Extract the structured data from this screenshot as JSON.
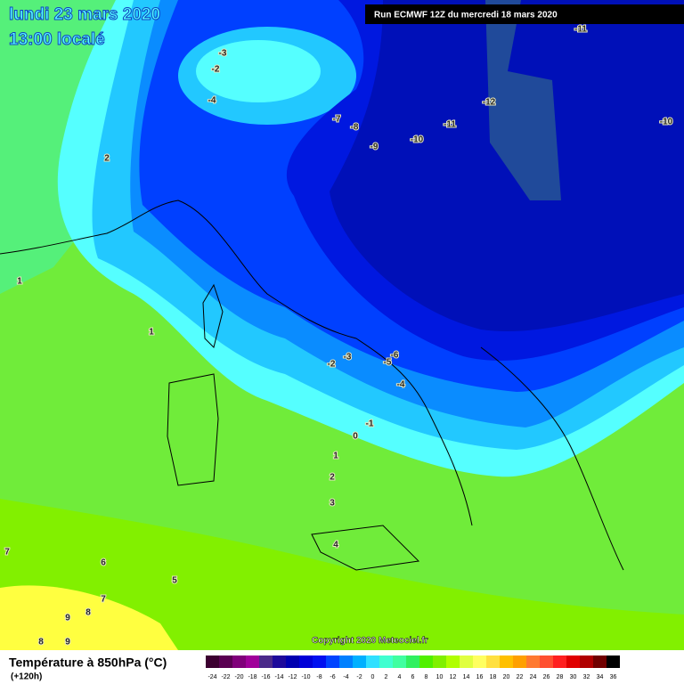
{
  "header": {
    "date": "lundi 23 mars 2020",
    "time": "13:00 localé",
    "run": "Run ECMWF 12Z du mercredi 18 mars 2020"
  },
  "copyright": "Copyright 2020 Meteociel.fr",
  "legend": {
    "title": "Température à 850hPa (°C)",
    "subtitle": "(+120h)",
    "scale": [
      {
        "label": -24,
        "color": "#3c0030"
      },
      {
        "label": -22,
        "color": "#5a0052"
      },
      {
        "label": -20,
        "color": "#80007a"
      },
      {
        "label": -18,
        "color": "#a0009a"
      },
      {
        "label": -16,
        "color": "#4b2a8a"
      },
      {
        "label": -14,
        "color": "#1e0a9b"
      },
      {
        "label": -12,
        "color": "#0000b0"
      },
      {
        "label": -10,
        "color": "#0000d8"
      },
      {
        "label": -8,
        "color": "#0010f0"
      },
      {
        "label": -6,
        "color": "#0044ff"
      },
      {
        "label": -4,
        "color": "#0080ff"
      },
      {
        "label": -2,
        "color": "#00b0ff"
      },
      {
        "label": 0,
        "color": "#30e0ff"
      },
      {
        "label": 2,
        "color": "#40ffd0"
      },
      {
        "label": 4,
        "color": "#40ffa0"
      },
      {
        "label": 6,
        "color": "#30f060"
      },
      {
        "label": 8,
        "color": "#50f000"
      },
      {
        "label": 10,
        "color": "#80f000"
      },
      {
        "label": 12,
        "color": "#b0ff00"
      },
      {
        "label": 14,
        "color": "#e0ff40"
      },
      {
        "label": 16,
        "color": "#ffff60"
      },
      {
        "label": 18,
        "color": "#ffe040"
      },
      {
        "label": 20,
        "color": "#ffc000"
      },
      {
        "label": 22,
        "color": "#ffa000"
      },
      {
        "label": 24,
        "color": "#ff7a30"
      },
      {
        "label": 26,
        "color": "#ff5030"
      },
      {
        "label": 28,
        "color": "#ff2020"
      },
      {
        "label": 30,
        "color": "#e00000"
      },
      {
        "label": 32,
        "color": "#b00000"
      },
      {
        "label": 34,
        "color": "#700000"
      },
      {
        "label": 36,
        "color": "#000000"
      }
    ]
  },
  "contour_labels": [
    -3,
    -2,
    -4,
    2,
    -7,
    -8,
    -9,
    -10,
    -11,
    -12,
    -11,
    -10,
    1,
    1,
    -2,
    -3,
    -5,
    -6,
    -4,
    -1,
    0,
    1,
    2,
    3,
    4,
    7,
    6,
    5,
    7,
    9,
    8,
    8,
    9
  ]
}
